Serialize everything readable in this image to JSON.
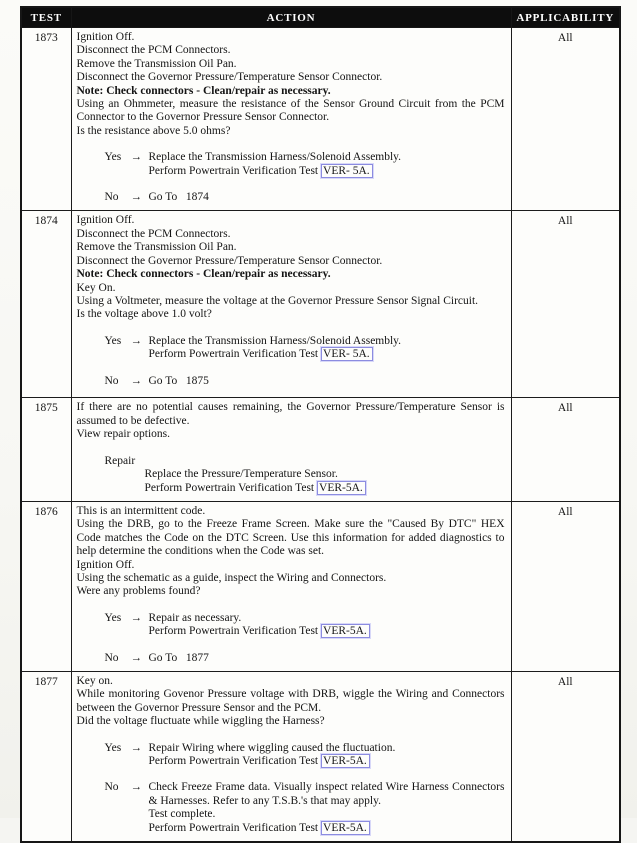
{
  "table": {
    "columns": [
      "TEST",
      "ACTION",
      "APPLICABILITY"
    ],
    "rows": [
      {
        "test": "1873",
        "applicability": "All",
        "action": [
          {
            "type": "para",
            "segs": [
              {
                "t": "Ignition Off."
              }
            ]
          },
          {
            "type": "para",
            "segs": [
              {
                "t": "Disconnect the PCM Connectors."
              }
            ]
          },
          {
            "type": "para",
            "segs": [
              {
                "t": "Remove the Transmission Oil Pan."
              }
            ]
          },
          {
            "type": "para",
            "segs": [
              {
                "t": "Disconnect the Governor Pressure/Temperature Sensor Connector."
              }
            ]
          },
          {
            "type": "para",
            "bold": true,
            "segs": [
              {
                "t": "Note: Check connectors - Clean/repair as necessary."
              }
            ]
          },
          {
            "type": "para",
            "segs": [
              {
                "t": "Using an Ohmmeter, measure the resistance of the Sensor Ground Circuit from the PCM Connector to the Governor Pressure Sensor Connector."
              }
            ]
          },
          {
            "type": "para",
            "segs": [
              {
                "t": "Is the resistance above 5.0 ohms?"
              }
            ]
          },
          {
            "type": "decision",
            "label": "Yes",
            "arrow": "→",
            "lines": [
              [
                {
                  "t": "Replace the Transmission Harness/Solenoid Assembly."
                }
              ],
              [
                {
                  "t": "Perform Powertrain Verification Test "
                },
                {
                  "t": "VER- 5A.",
                  "link": true
                }
              ]
            ]
          },
          {
            "type": "decision",
            "label": "No",
            "arrow": "→",
            "lines": [
              [
                {
                  "t": "Go To   1874"
                }
              ]
            ]
          }
        ]
      },
      {
        "test": "1874",
        "applicability": "All",
        "action": [
          {
            "type": "para",
            "segs": [
              {
                "t": "Ignition Off."
              }
            ]
          },
          {
            "type": "para",
            "segs": [
              {
                "t": "Disconnect the PCM Connectors."
              }
            ]
          },
          {
            "type": "para",
            "segs": [
              {
                "t": "Remove the Transmission Oil Pan."
              }
            ]
          },
          {
            "type": "para",
            "segs": [
              {
                "t": "Disconnect the Governor Pressure/Temperature Sensor Connector."
              }
            ]
          },
          {
            "type": "para",
            "bold": true,
            "segs": [
              {
                "t": "Note: Check connectors - Clean/repair as necessary."
              }
            ]
          },
          {
            "type": "para",
            "segs": [
              {
                "t": "Key On."
              }
            ]
          },
          {
            "type": "para",
            "segs": [
              {
                "t": "Using a Voltmeter, measure the voltage at the Governor Pressure Sensor Signal Circuit."
              }
            ]
          },
          {
            "type": "para",
            "segs": [
              {
                "t": "Is the voltage above 1.0 volt?"
              }
            ]
          },
          {
            "type": "decision",
            "label": "Yes",
            "arrow": "→",
            "lines": [
              [
                {
                  "t": "Replace the Transmission Harness/Solenoid Assembly."
                }
              ],
              [
                {
                  "t": "Perform Powertrain Verification Test "
                },
                {
                  "t": "VER- 5A.",
                  "link": true
                }
              ]
            ]
          },
          {
            "type": "decision",
            "label": "No",
            "arrow": "→",
            "lines": [
              [
                {
                  "t": "Go To   1875"
                }
              ]
            ]
          }
        ]
      },
      {
        "test": "1875",
        "applicability": "All",
        "action": [
          {
            "type": "para",
            "segs": [
              {
                "t": "If there are no potential causes remaining, the Governor Pressure/Temperature Sensor is assumed to be defective."
              }
            ]
          },
          {
            "type": "para",
            "segs": [
              {
                "t": "View repair options."
              }
            ]
          },
          {
            "type": "para",
            "indent": 1,
            "segs": [
              {
                "t": "Repair"
              }
            ]
          },
          {
            "type": "para",
            "indent": 2,
            "segs": [
              {
                "t": "Replace the Pressure/Temperature Sensor."
              }
            ]
          },
          {
            "type": "para",
            "indent": 2,
            "segs": [
              {
                "t": "Perform Powertrain Verification Test "
              },
              {
                "t": "VER-5A.",
                "link": true
              }
            ]
          }
        ]
      },
      {
        "test": "1876",
        "applicability": "All",
        "action": [
          {
            "type": "para",
            "segs": [
              {
                "t": "This is an intermittent code."
              }
            ]
          },
          {
            "type": "para",
            "segs": [
              {
                "t": "Using the DRB, go to the Freeze Frame Screen. Make sure the \"Caused By DTC\" HEX Code matches the Code on the DTC Screen. Use this information for added diagnostics to help determine the conditions when the Code was set."
              }
            ]
          },
          {
            "type": "para",
            "segs": [
              {
                "t": "Ignition Off."
              }
            ]
          },
          {
            "type": "para",
            "segs": [
              {
                "t": "Using the schematic as a guide, inspect the Wiring and Connectors."
              }
            ]
          },
          {
            "type": "para",
            "segs": [
              {
                "t": "Were any problems found?"
              }
            ]
          },
          {
            "type": "decision",
            "label": "Yes",
            "arrow": "→",
            "lines": [
              [
                {
                  "t": "Repair as necessary."
                }
              ],
              [
                {
                  "t": "Perform Powertrain Verification Test "
                },
                {
                  "t": "VER-5A.",
                  "link": true
                }
              ]
            ]
          },
          {
            "type": "decision",
            "label": "No",
            "arrow": "→",
            "lines": [
              [
                {
                  "t": "Go To   1877"
                }
              ]
            ]
          }
        ]
      },
      {
        "test": "1877",
        "applicability": "All",
        "action": [
          {
            "type": "para",
            "segs": [
              {
                "t": "Key on."
              }
            ]
          },
          {
            "type": "para",
            "segs": [
              {
                "t": "While monitoring Govenor Pressure voltage with DRB, wiggle the Wiring and Connectors between the Governor Pressure Sensor and the PCM."
              }
            ]
          },
          {
            "type": "para",
            "segs": [
              {
                "t": "Did the voltage fluctuate while wiggling the Harness?"
              }
            ]
          },
          {
            "type": "decision",
            "label": "Yes",
            "arrow": "→",
            "lines": [
              [
                {
                  "t": "Repair Wiring where wiggling caused the fluctuation."
                }
              ],
              [
                {
                  "t": "Perform Powertrain Verification Test "
                },
                {
                  "t": "VER-5A.",
                  "link": true
                }
              ]
            ]
          },
          {
            "type": "decision",
            "label": "No",
            "arrow": "→",
            "lines": [
              [
                {
                  "t": "Check Freeze Frame data. Visually inspect related Wire Harness Connectors & Harnesses. Refer to any T.S.B.'s that may apply."
                }
              ],
              [
                {
                  "t": "Test complete."
                }
              ],
              [
                {
                  "t": "Perform Powertrain Verification Test "
                },
                {
                  "t": "VER-5A.",
                  "link": true
                }
              ]
            ]
          }
        ]
      }
    ]
  },
  "colors": {
    "header_bg": "#0d0d0d",
    "header_text": "#ffffff",
    "border": "#1c1c1c",
    "link_box_border": "#8c8ce0",
    "paper": "#fbfbf8"
  },
  "icons": {
    "arrow": "→"
  }
}
